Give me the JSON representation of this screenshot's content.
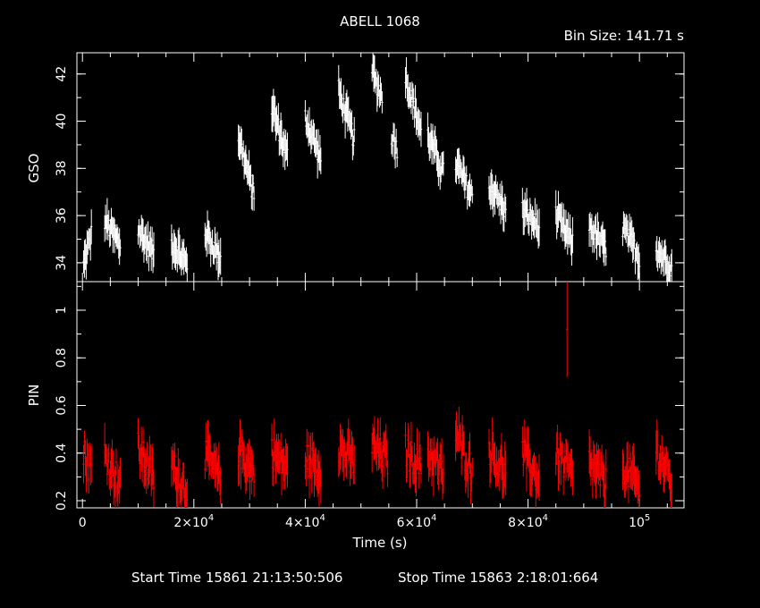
{
  "chart_data": {
    "type": "scatter",
    "title": "ABELL 1068",
    "bin_size_label": "Bin Size: 141.71 s",
    "xlabel": "Time (s)",
    "xlim": [
      -1000,
      108000
    ],
    "x_ticks": [
      {
        "value": 0,
        "label": "0"
      },
      {
        "value": 20000,
        "mant": "2×10",
        "exp": "4"
      },
      {
        "value": 40000,
        "mant": "4×10",
        "exp": "4"
      },
      {
        "value": 60000,
        "mant": "6×10",
        "exp": "4"
      },
      {
        "value": 80000,
        "mant": "8×10",
        "exp": "4"
      },
      {
        "value": 100000,
        "mant": "10",
        "exp": "5"
      }
    ],
    "start_time_label": "Start Time 15861 21:13:50:506",
    "stop_time_label": "Stop Time 15863  2:18:01:664",
    "panels": [
      {
        "name": "GSO",
        "ylabel": "GSO",
        "ylim": [
          33.2,
          42.9
        ],
        "y_ticks": [
          34,
          36,
          38,
          40,
          42
        ],
        "color": "#ffffff",
        "segments": [
          {
            "x0": 200,
            "x1": 1600,
            "y0": 33.9,
            "y1": 35.2
          },
          {
            "x0": 4000,
            "x1": 6800,
            "y0": 35.8,
            "y1": 34.7
          },
          {
            "x0": 10000,
            "x1": 12800,
            "y0": 35.4,
            "y1": 34.4
          },
          {
            "x0": 16000,
            "x1": 18800,
            "y0": 34.9,
            "y1": 33.9
          },
          {
            "x0": 22000,
            "x1": 24800,
            "y0": 35.3,
            "y1": 34.2
          },
          {
            "x0": 28000,
            "x1": 30800,
            "y0": 39.4,
            "y1": 36.8
          },
          {
            "x0": 34000,
            "x1": 36800,
            "y0": 40.6,
            "y1": 38.5
          },
          {
            "x0": 40000,
            "x1": 42800,
            "y0": 40.2,
            "y1": 38.4
          },
          {
            "x0": 46000,
            "x1": 48800,
            "y0": 41.3,
            "y1": 39.2
          },
          {
            "x0": 52000,
            "x1": 53800,
            "y0": 42.1,
            "y1": 41.0
          },
          {
            "x0": 55500,
            "x1": 56500,
            "y0": 39.4,
            "y1": 38.9
          },
          {
            "x0": 58000,
            "x1": 60800,
            "y0": 41.9,
            "y1": 39.6
          },
          {
            "x0": 62000,
            "x1": 64800,
            "y0": 39.4,
            "y1": 37.8
          },
          {
            "x0": 67000,
            "x1": 70000,
            "y0": 38.2,
            "y1": 36.8
          },
          {
            "x0": 73000,
            "x1": 76000,
            "y0": 37.3,
            "y1": 36.2
          },
          {
            "x0": 79000,
            "x1": 82000,
            "y0": 36.2,
            "y1": 35.5
          },
          {
            "x0": 85000,
            "x1": 88000,
            "y0": 36.0,
            "y1": 34.8
          },
          {
            "x0": 91000,
            "x1": 94000,
            "y0": 35.6,
            "y1": 34.5
          },
          {
            "x0": 97000,
            "x1": 100000,
            "y0": 35.5,
            "y1": 34.2
          },
          {
            "x0": 103000,
            "x1": 105800,
            "y0": 34.6,
            "y1": 33.8
          }
        ]
      },
      {
        "name": "PIN",
        "ylabel": "PIN",
        "ylim": [
          0.17,
          1.12
        ],
        "y_ticks": [
          0.2,
          0.4,
          0.6,
          0.8,
          1
        ],
        "color": "#ff0000",
        "segments": [
          {
            "x0": 200,
            "x1": 1600,
            "y0": 0.4,
            "y1": 0.33
          },
          {
            "x0": 4000,
            "x1": 6800,
            "y0": 0.4,
            "y1": 0.27
          },
          {
            "x0": 10000,
            "x1": 12800,
            "y0": 0.42,
            "y1": 0.29
          },
          {
            "x0": 16000,
            "x1": 18800,
            "y0": 0.35,
            "y1": 0.24
          },
          {
            "x0": 22000,
            "x1": 24800,
            "y0": 0.4,
            "y1": 0.28
          },
          {
            "x0": 28000,
            "x1": 30800,
            "y0": 0.41,
            "y1": 0.32
          },
          {
            "x0": 34000,
            "x1": 36800,
            "y0": 0.41,
            "y1": 0.33
          },
          {
            "x0": 40000,
            "x1": 42800,
            "y0": 0.38,
            "y1": 0.33
          },
          {
            "x0": 46000,
            "x1": 48800,
            "y0": 0.42,
            "y1": 0.36
          },
          {
            "x0": 52000,
            "x1": 54800,
            "y0": 0.43,
            "y1": 0.37
          },
          {
            "x0": 58000,
            "x1": 60800,
            "y0": 0.41,
            "y1": 0.34
          },
          {
            "x0": 62000,
            "x1": 64800,
            "y0": 0.41,
            "y1": 0.31
          },
          {
            "x0": 67000,
            "x1": 70000,
            "y0": 0.48,
            "y1": 0.32
          },
          {
            "x0": 73000,
            "x1": 76000,
            "y0": 0.42,
            "y1": 0.31
          },
          {
            "x0": 79000,
            "x1": 82000,
            "y0": 0.4,
            "y1": 0.28
          },
          {
            "x0": 85000,
            "x1": 88000,
            "y0": 0.4,
            "y1": 0.3
          },
          {
            "x0": 91000,
            "x1": 94000,
            "y0": 0.36,
            "y1": 0.27
          },
          {
            "x0": 97000,
            "x1": 100000,
            "y0": 0.35,
            "y1": 0.25
          },
          {
            "x0": 103000,
            "x1": 105800,
            "y0": 0.42,
            "y1": 0.27
          }
        ],
        "highlights": [
          {
            "x": 87000,
            "y": 0.92,
            "low": 0.72,
            "high": 1.12
          }
        ]
      }
    ]
  }
}
